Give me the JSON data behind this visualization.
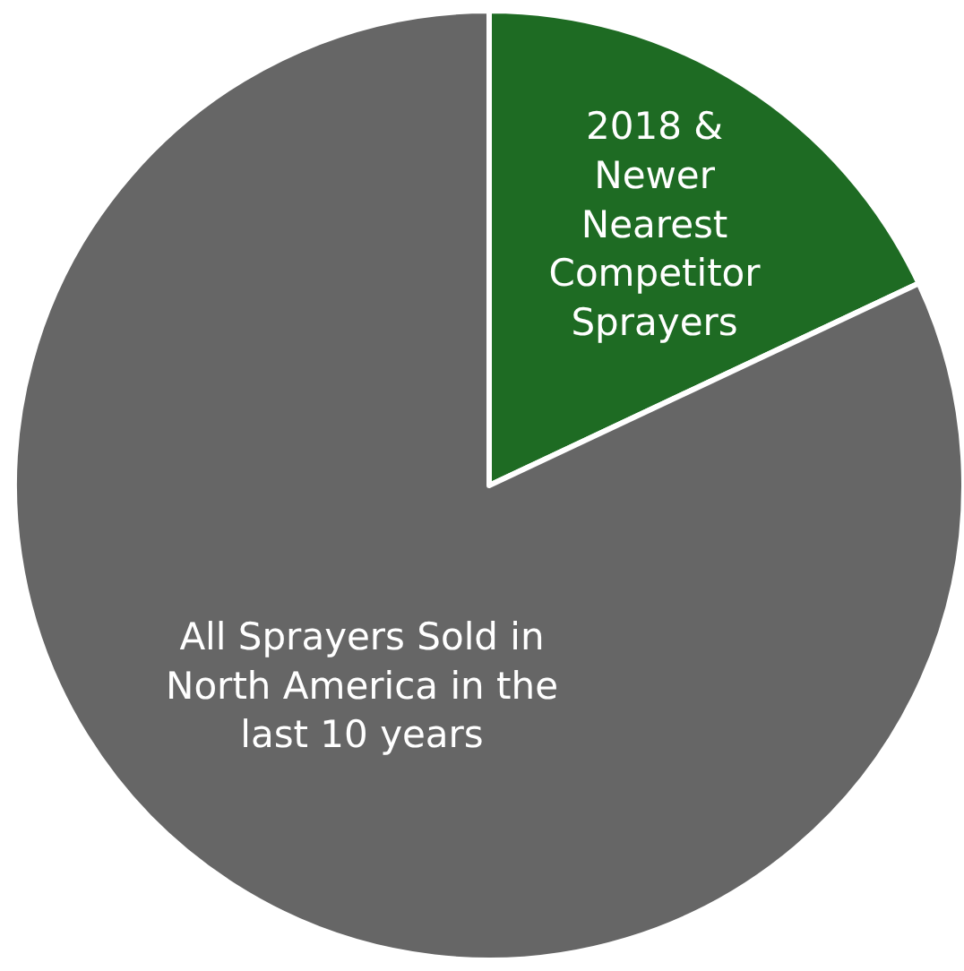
{
  "chart_data": {
    "type": "pie",
    "categories": [
      "2018 & Newer Nearest Competitor Sprayers",
      "All Sprayers Sold in North America in the last 10 years"
    ],
    "values": [
      18,
      82
    ],
    "colors": [
      "#1e6b23",
      "#666666"
    ]
  }
}
